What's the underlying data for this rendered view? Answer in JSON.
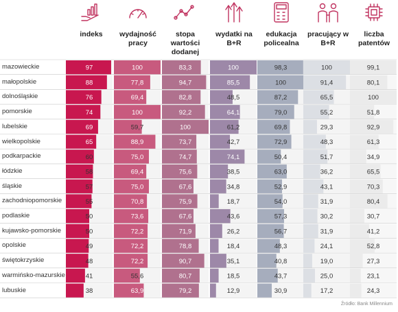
{
  "chart_data": {
    "type": "table",
    "columns": [
      {
        "label": "indeks",
        "color": "#c8174f",
        "track": "#f4f4f4",
        "icon": "growth-hand-icon"
      },
      {
        "label": "wydajność pracy",
        "color": "#c85a7e",
        "track": "#f4f4f4",
        "icon": "gauge-icon"
      },
      {
        "label": "stopa wartości dodanej",
        "color": "#b0718e",
        "track": "#f4f4f4",
        "icon": "trend-line-icon"
      },
      {
        "label": "wydatki na B+R",
        "color": "#9d88a8",
        "track": "#f4f4f4",
        "icon": "rising-arrows-icon"
      },
      {
        "label": "edukacja policealna",
        "color": "#a6adbd",
        "track": "#f4f4f4",
        "icon": "calculator-icon"
      },
      {
        "label": "pracujący w B+R",
        "color": "#dcdfe4",
        "track": "#f4f4f4",
        "icon": "researchers-icon"
      },
      {
        "label": "liczba patentów",
        "color": "#ebebeb",
        "track": "#f7f7f7",
        "icon": "chip-icon"
      }
    ],
    "rows": [
      {
        "region": "mazowieckie",
        "values": [
          "97",
          "100",
          "83,3",
          "100",
          "98,3",
          "100",
          "99,1"
        ]
      },
      {
        "region": "małopolskie",
        "values": [
          "88",
          "77,8",
          "94,7",
          "85,5",
          "100",
          "91,4",
          "80,1"
        ]
      },
      {
        "region": "dolnośląskie",
        "values": [
          "76",
          "69,4",
          "82,8",
          "48,5",
          "87,2",
          "65,5",
          "100"
        ]
      },
      {
        "region": "pomorskie",
        "values": [
          "74",
          "100",
          "92,2",
          "64,1",
          "79,0",
          "55,2",
          "51,8"
        ]
      },
      {
        "region": "lubelskie",
        "values": [
          "69",
          "59,7",
          "100",
          "61,2",
          "69,8",
          "29,3",
          "92,9"
        ]
      },
      {
        "region": "wielkopolskie",
        "values": [
          "65",
          "88,9",
          "73,7",
          "42,7",
          "72,9",
          "48,3",
          "61,3"
        ]
      },
      {
        "region": "podkarpackie",
        "values": [
          "60",
          "75,0",
          "74,7",
          "74,1",
          "50,4",
          "51,7",
          "34,9"
        ]
      },
      {
        "region": "łódzkie",
        "values": [
          "58",
          "69,4",
          "75,6",
          "38,5",
          "63,0",
          "36,2",
          "65,5"
        ]
      },
      {
        "region": "śląskie",
        "values": [
          "57",
          "75,0",
          "67,6",
          "34,8",
          "52,9",
          "43,1",
          "70,3"
        ]
      },
      {
        "region": "zachodniopomorskie",
        "values": [
          "55",
          "70,8",
          "75,9",
          "18,7",
          "54,0",
          "31,9",
          "80,4"
        ]
      },
      {
        "region": "podlaskie",
        "values": [
          "50",
          "73,6",
          "67,6",
          "43,6",
          "57,3",
          "30,2",
          "30,7"
        ]
      },
      {
        "region": "kujawsko-pomorskie",
        "values": [
          "50",
          "72,2",
          "71,9",
          "26,2",
          "56,7",
          "31,9",
          "41,2"
        ]
      },
      {
        "region": "opolskie",
        "values": [
          "49",
          "72,2",
          "78,8",
          "18,4",
          "48,3",
          "24,1",
          "52,8"
        ]
      },
      {
        "region": "świętokrzyskie",
        "values": [
          "48",
          "72,2",
          "90,7",
          "35,1",
          "40,8",
          "19,0",
          "27,3"
        ]
      },
      {
        "region": "warmińsko-mazurskie",
        "values": [
          "41",
          "55,6",
          "80,7",
          "18,5",
          "43,7",
          "25,0",
          "23,1"
        ]
      },
      {
        "region": "lubuskie",
        "values": [
          "38",
          "63,9",
          "79,2",
          "12,9",
          "30,9",
          "17,2",
          "24,3"
        ]
      }
    ],
    "max_value": 100,
    "source": "Źródło: Bank Millennium"
  }
}
